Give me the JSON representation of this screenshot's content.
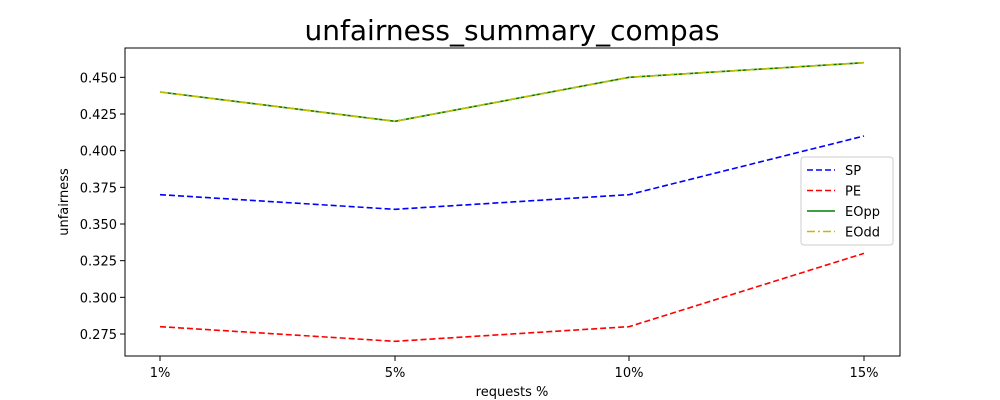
{
  "chart_data": {
    "type": "line",
    "title": "unfairness_summary_compas",
    "xlabel": "requests %",
    "ylabel": "unfairness",
    "categories": [
      "1%",
      "5%",
      "10%",
      "15%"
    ],
    "ylim": [
      0.26,
      0.47
    ],
    "yticks": [
      0.275,
      0.3,
      0.325,
      0.35,
      0.375,
      0.4,
      0.425,
      0.45
    ],
    "ytick_labels": [
      "0.275",
      "0.300",
      "0.325",
      "0.350",
      "0.375",
      "0.400",
      "0.425",
      "0.450"
    ],
    "grid": false,
    "legend_position": "right",
    "series": [
      {
        "name": "SP",
        "values": [
          0.37,
          0.36,
          0.37,
          0.41
        ],
        "color": "#0000ff",
        "style": "dashed"
      },
      {
        "name": "PE",
        "values": [
          0.28,
          0.27,
          0.28,
          0.33
        ],
        "color": "#ff0000",
        "style": "dashed"
      },
      {
        "name": "EOpp",
        "values": [
          0.44,
          0.42,
          0.45,
          0.46
        ],
        "color": "#008000",
        "style": "solid"
      },
      {
        "name": " EOdd",
        "values": [
          0.44,
          0.42,
          0.45,
          0.46
        ],
        "color": "#bfbf00",
        "style": "dashdot"
      }
    ]
  }
}
